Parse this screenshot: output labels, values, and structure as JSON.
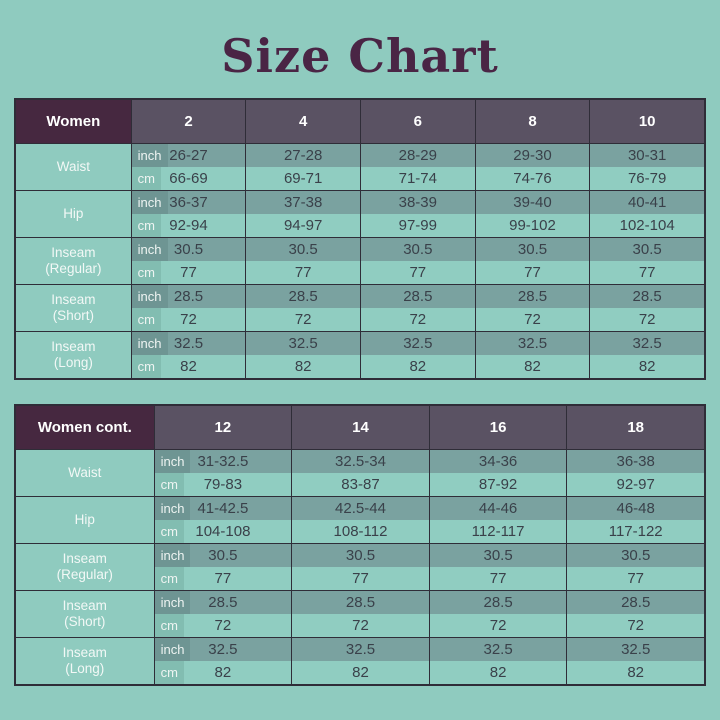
{
  "page": {
    "title": "Size Chart",
    "colors": {
      "background": "#8fcbbf",
      "title_text": "#4a2545",
      "table_title_cell": "#462840",
      "size_header_cell": "#5a5263",
      "inch_row": "#7aa2a0",
      "cm_row": "#90cdc1",
      "border": "#2f2d38",
      "value_text": "#3a414a",
      "light_text": "#ffffff"
    }
  },
  "units": {
    "inch": "inch",
    "cm": "cm"
  },
  "t1": {
    "title": "Women",
    "sizes": [
      "2",
      "4",
      "6",
      "8",
      "10"
    ],
    "rows": [
      {
        "label": "Waist",
        "sub": "",
        "inch": [
          "26-27",
          "27-28",
          "28-29",
          "29-30",
          "30-31"
        ],
        "cm": [
          "66-69",
          "69-71",
          "71-74",
          "74-76",
          "76-79"
        ]
      },
      {
        "label": "Hip",
        "sub": "",
        "inch": [
          "36-37",
          "37-38",
          "38-39",
          "39-40",
          "40-41"
        ],
        "cm": [
          "92-94",
          "94-97",
          "97-99",
          "99-102",
          "102-104"
        ]
      },
      {
        "label": "Inseam",
        "sub": "(Regular)",
        "inch": [
          "30.5",
          "30.5",
          "30.5",
          "30.5",
          "30.5"
        ],
        "cm": [
          "77",
          "77",
          "77",
          "77",
          "77"
        ]
      },
      {
        "label": "Inseam",
        "sub": "(Short)",
        "inch": [
          "28.5",
          "28.5",
          "28.5",
          "28.5",
          "28.5"
        ],
        "cm": [
          "72",
          "72",
          "72",
          "72",
          "72"
        ]
      },
      {
        "label": "Inseam",
        "sub": "(Long)",
        "inch": [
          "32.5",
          "32.5",
          "32.5",
          "32.5",
          "32.5"
        ],
        "cm": [
          "82",
          "82",
          "82",
          "82",
          "82"
        ]
      }
    ]
  },
  "t2": {
    "title": "Women cont.",
    "sizes": [
      "12",
      "14",
      "16",
      "18"
    ],
    "rows": [
      {
        "label": "Waist",
        "sub": "",
        "inch": [
          "31-32.5",
          "32.5-34",
          "34-36",
          "36-38"
        ],
        "cm": [
          "79-83",
          "83-87",
          "87-92",
          "92-97"
        ]
      },
      {
        "label": "Hip",
        "sub": "",
        "inch": [
          "41-42.5",
          "42.5-44",
          "44-46",
          "46-48"
        ],
        "cm": [
          "104-108",
          "108-112",
          "112-117",
          "117-122"
        ]
      },
      {
        "label": "Inseam",
        "sub": "(Regular)",
        "inch": [
          "30.5",
          "30.5",
          "30.5",
          "30.5"
        ],
        "cm": [
          "77",
          "77",
          "77",
          "77"
        ]
      },
      {
        "label": "Inseam",
        "sub": "(Short)",
        "inch": [
          "28.5",
          "28.5",
          "28.5",
          "28.5"
        ],
        "cm": [
          "72",
          "72",
          "72",
          "72"
        ]
      },
      {
        "label": "Inseam",
        "sub": "(Long)",
        "inch": [
          "32.5",
          "32.5",
          "32.5",
          "32.5"
        ],
        "cm": [
          "82",
          "82",
          "82",
          "82"
        ]
      }
    ]
  }
}
